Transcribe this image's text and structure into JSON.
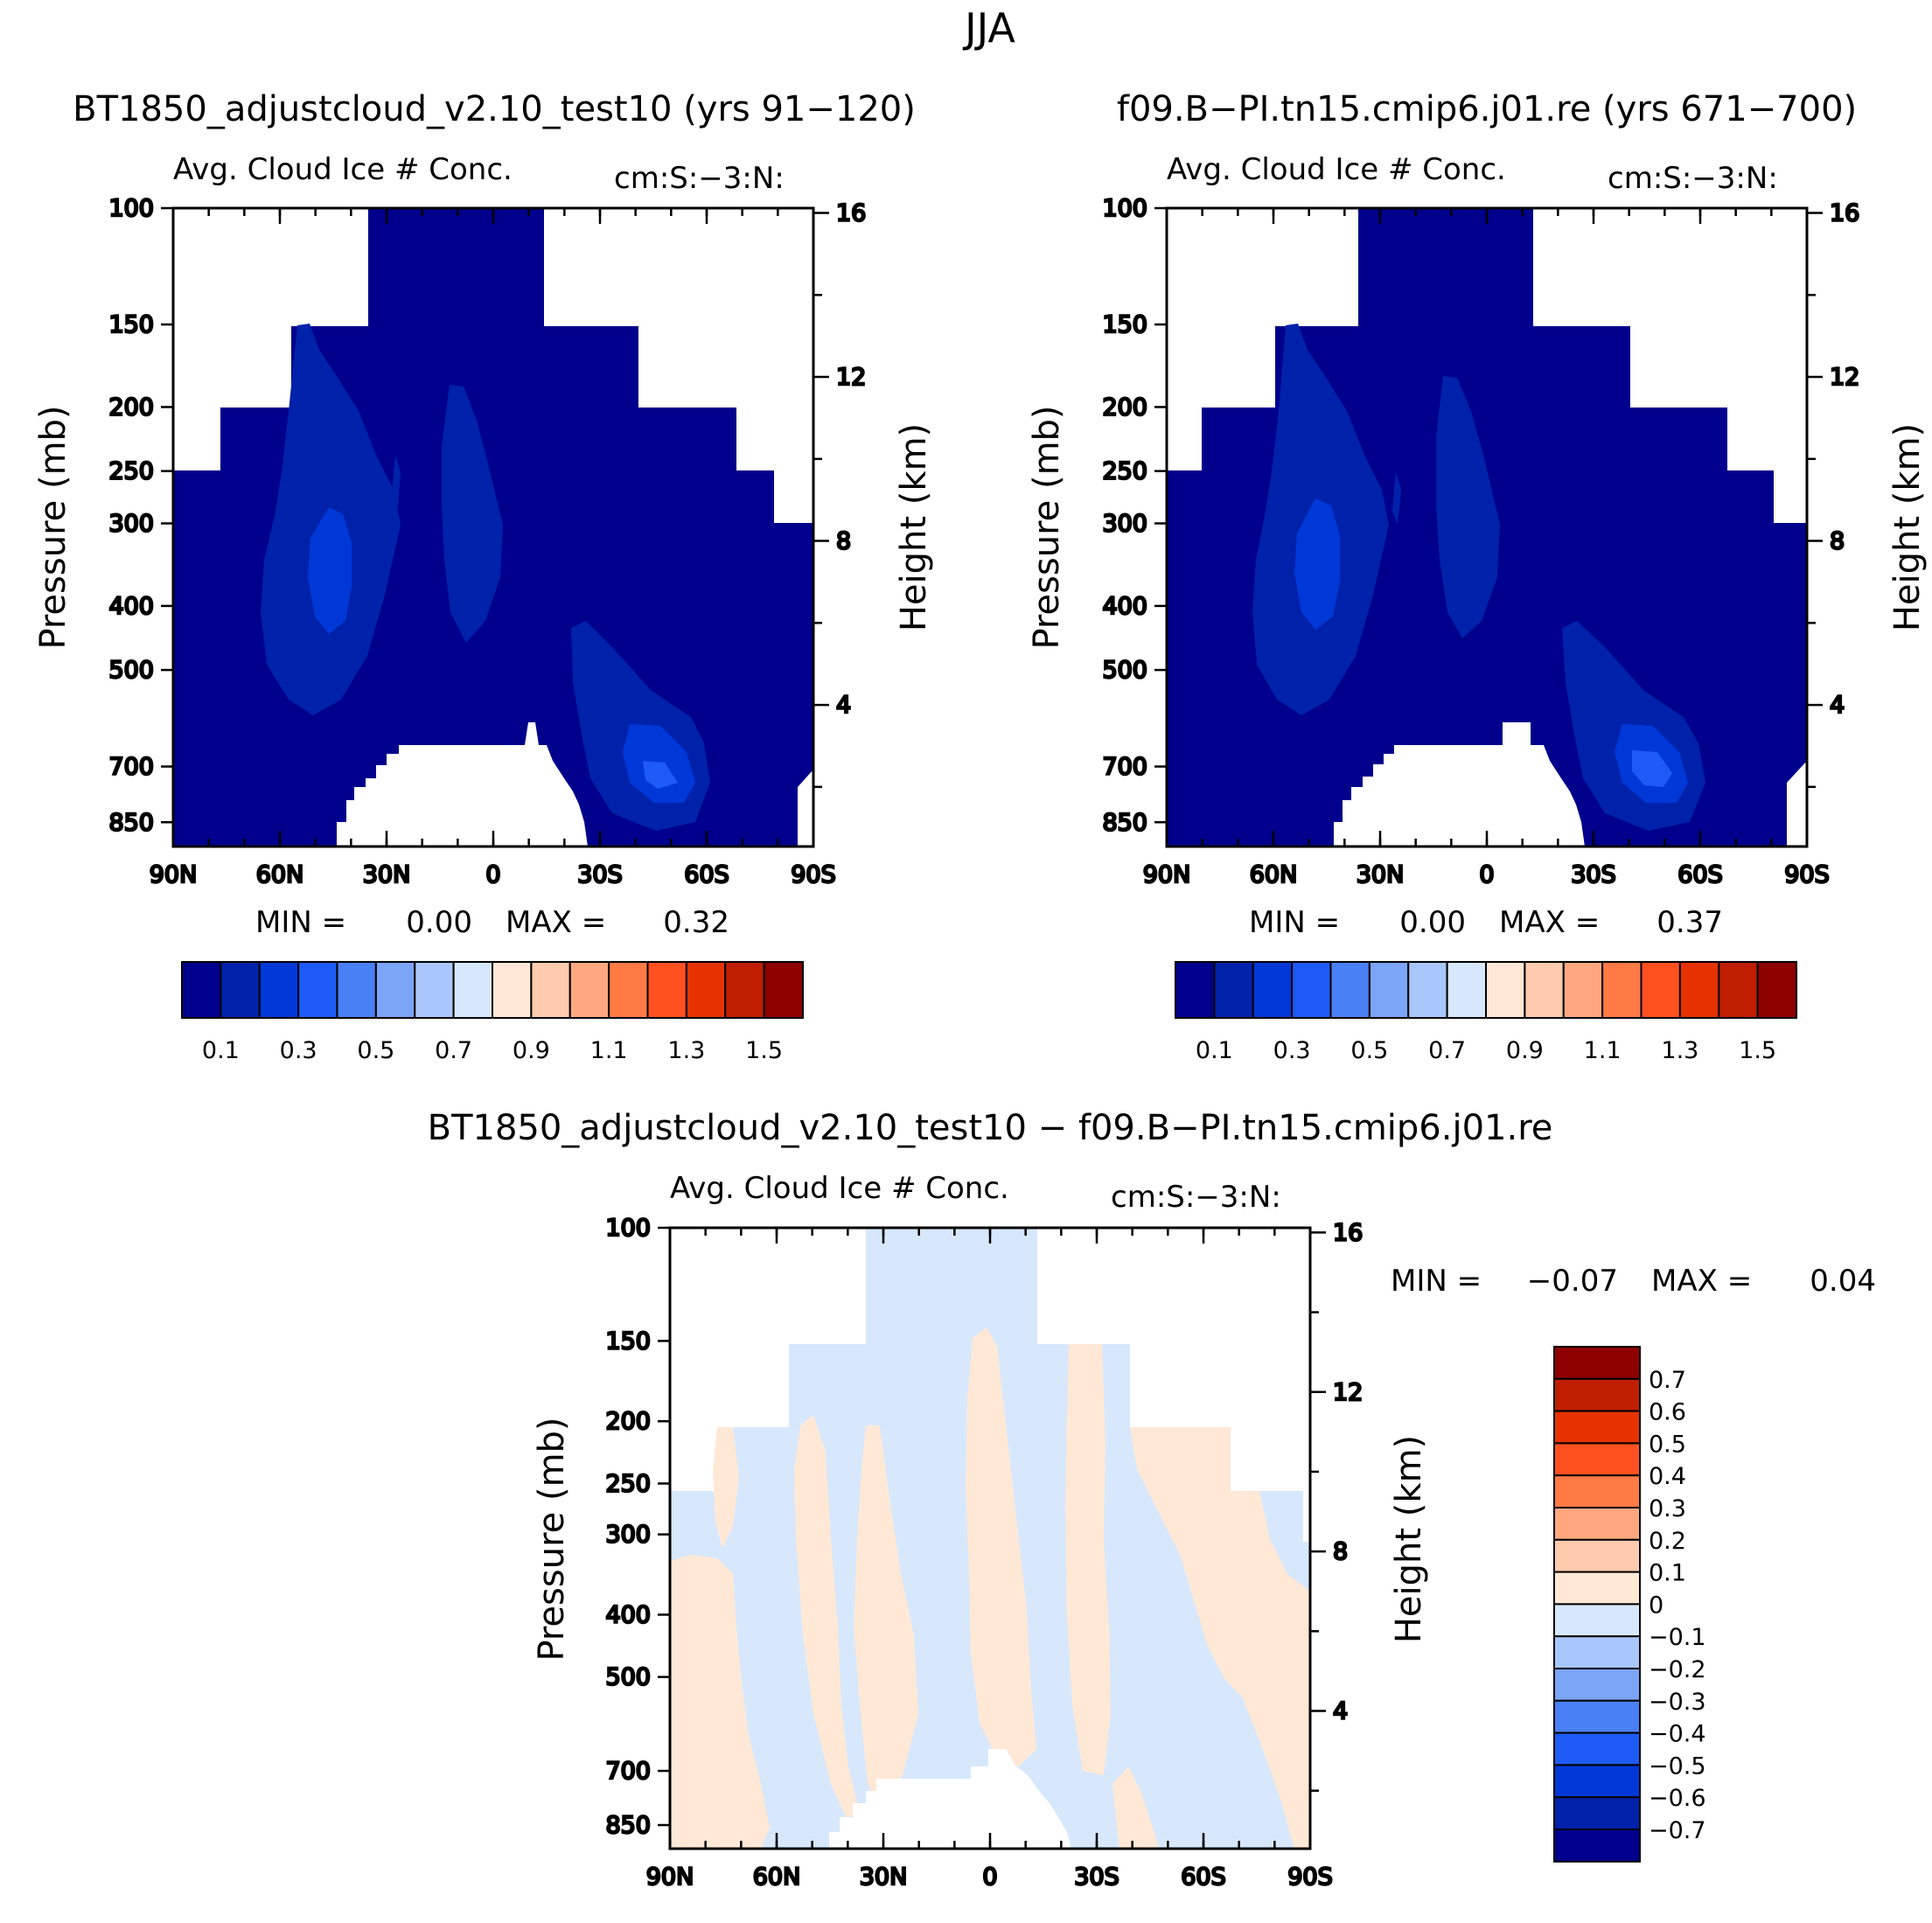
{
  "figure": {
    "title": "JJA",
    "difference_title": "BT1850_adjustcloud_v2.10_test10 − f09.B−PI.tn15.cmip6.j01.re"
  },
  "colors": {
    "model_scale": [
      "#00008C",
      "#0022AA",
      "#0038D8",
      "#1E5AF5",
      "#4A80F5",
      "#7CA4F7",
      "#A8C6FA",
      "#D8E8FC",
      "#FFE8D6",
      "#FFCBAF",
      "#FFA880",
      "#FF7A45",
      "#FF5020",
      "#E63200",
      "#BF1E00",
      "#8C0000"
    ],
    "diff_scale": [
      "#00008C",
      "#0022AA",
      "#0038D8",
      "#1E5AF5",
      "#4A80F5",
      "#7CA4F7",
      "#A8C6FA",
      "#D8E8FC",
      "#FFE8D6",
      "#FFCBAF",
      "#FFA880",
      "#FF7A45",
      "#FF5020",
      "#E63200",
      "#BF1E00",
      "#8C0000"
    ]
  },
  "chart_data": [
    {
      "id": "panel_a",
      "type": "contour",
      "title": "BT1850_adjustcloud_v2.10_test10 (yrs 91−120)",
      "variable": "Avg. Cloud Ice # Conc.",
      "units": "cm:S:−3:N:",
      "xlabel": "",
      "ylabel": "Pressure (mb)",
      "y2label": "Height (km)",
      "x_ticks": [
        "90N",
        "60N",
        "30N",
        "0",
        "30S",
        "60S",
        "90S"
      ],
      "x_range": [
        -90,
        90
      ],
      "y_ticks": [
        "100",
        "150",
        "200",
        "250",
        "300",
        "400",
        "500",
        "700",
        "850"
      ],
      "y_range_mb": [
        100,
        925
      ],
      "y2_ticks": [
        "16",
        "12",
        "8",
        "4"
      ],
      "min_label": "MIN =",
      "min_value": "0.00",
      "max_label": "MAX =",
      "max_value": "0.32",
      "colorbar_labels": [
        "0.1",
        "0.3",
        "0.5",
        "0.7",
        "0.9",
        "1.1",
        "1.3",
        "1.5"
      ]
    },
    {
      "id": "panel_b",
      "type": "contour",
      "title": "f09.B−PI.tn15.cmip6.j01.re (yrs 671−700)",
      "variable": "Avg. Cloud Ice # Conc.",
      "units": "cm:S:−3:N:",
      "xlabel": "",
      "ylabel": "Pressure (mb)",
      "y2label": "Height (km)",
      "x_ticks": [
        "90N",
        "60N",
        "30N",
        "0",
        "30S",
        "60S",
        "90S"
      ],
      "x_range": [
        -90,
        90
      ],
      "y_ticks": [
        "100",
        "150",
        "200",
        "250",
        "300",
        "400",
        "500",
        "700",
        "850"
      ],
      "y_range_mb": [
        100,
        925
      ],
      "y2_ticks": [
        "16",
        "12",
        "8",
        "4"
      ],
      "min_label": "MIN =",
      "min_value": "0.00",
      "max_label": "MAX =",
      "max_value": "0.37",
      "colorbar_labels": [
        "0.1",
        "0.3",
        "0.5",
        "0.7",
        "0.9",
        "1.1",
        "1.3",
        "1.5"
      ]
    },
    {
      "id": "panel_c",
      "type": "contour",
      "title": "",
      "variable": "Avg. Cloud Ice # Conc.",
      "units": "cm:S:−3:N:",
      "xlabel": "",
      "ylabel": "Pressure (mb)",
      "y2label": "Height (km)",
      "x_ticks": [
        "90N",
        "60N",
        "30N",
        "0",
        "30S",
        "60S",
        "90S"
      ],
      "x_range": [
        -90,
        90
      ],
      "y_ticks": [
        "100",
        "150",
        "200",
        "250",
        "300",
        "400",
        "500",
        "700",
        "850"
      ],
      "y_range_mb": [
        100,
        925
      ],
      "y2_ticks": [
        "16",
        "12",
        "8",
        "4"
      ],
      "min_label": "MIN =",
      "min_value": "−0.07",
      "max_label": "MAX =",
      "max_value": "0.04",
      "colorbar_labels": [
        "0.7",
        "0.6",
        "0.5",
        "0.4",
        "0.3",
        "0.2",
        "0.1",
        "0",
        "−0.1",
        "−0.2",
        "−0.3",
        "−0.4",
        "−0.5",
        "−0.6",
        "−0.7"
      ]
    }
  ]
}
